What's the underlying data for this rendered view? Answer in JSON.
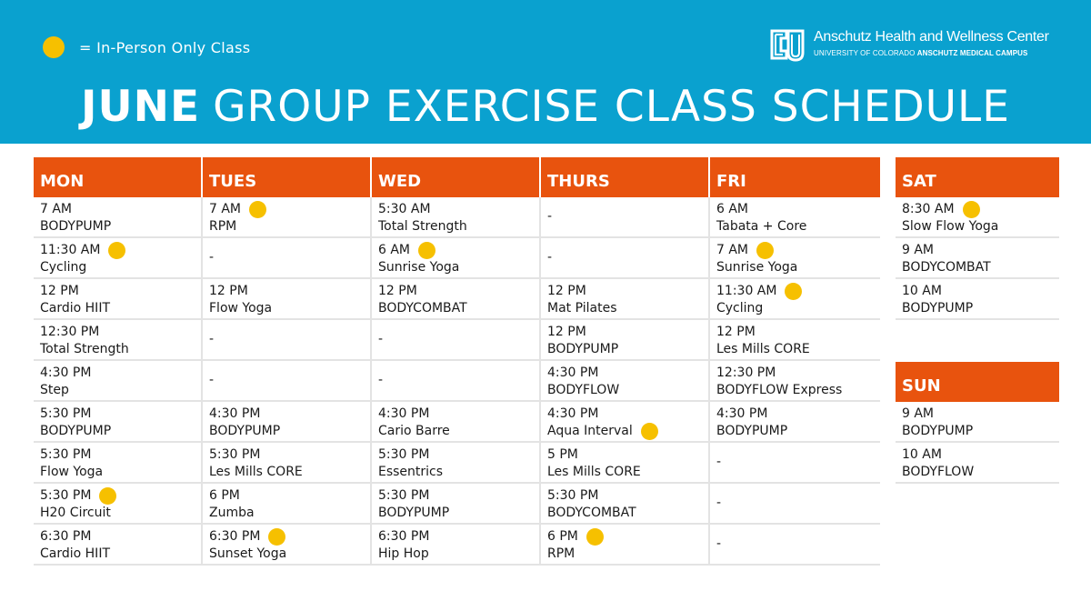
{
  "legend": {
    "text": "= In-Person Only Class",
    "dot_color": "#f6c000"
  },
  "logo": {
    "title": "Anschutz Health and Wellness Center",
    "subtitle_prefix": "UNIVERSITY OF COLORADO",
    "subtitle_bold": "ANSCHUTZ MEDICAL CAMPUS",
    "mark_icon": "cu-logo-icon"
  },
  "title": {
    "month": "JUNE",
    "rest": "GROUP EXERCISE CLASS SCHEDULE"
  },
  "colors": {
    "banner": "#0aa1cf",
    "header": "#e8530e",
    "dot": "#f6c000"
  },
  "weekdays": {
    "headers": [
      "MON",
      "TUES",
      "WED",
      "THURS",
      "FRI"
    ],
    "rows": [
      [
        {
          "time": "7 AM",
          "name": "BODYPUMP",
          "in_person": false
        },
        {
          "time": "7 AM",
          "name": "RPM",
          "in_person": true
        },
        {
          "time": "5:30 AM",
          "name": "Total Strength",
          "in_person": false
        },
        {
          "empty": "-"
        },
        {
          "time": "6 AM",
          "name": "Tabata + Core",
          "in_person": false
        }
      ],
      [
        {
          "time": "11:30 AM",
          "name": "Cycling",
          "in_person": true
        },
        {
          "empty": "-"
        },
        {
          "time": "6 AM",
          "name": "Sunrise Yoga",
          "in_person": true
        },
        {
          "empty": "-"
        },
        {
          "time": "7 AM",
          "name": "Sunrise Yoga",
          "in_person": true
        }
      ],
      [
        {
          "time": "12 PM",
          "name": "Cardio HIIT",
          "in_person": false
        },
        {
          "time": "12 PM",
          "name": "Flow Yoga",
          "in_person": false
        },
        {
          "time": "12 PM",
          "name": "BODYCOMBAT",
          "in_person": false
        },
        {
          "time": "12 PM",
          "name": "Mat Pilates",
          "in_person": false
        },
        {
          "time": "11:30 AM",
          "name": "Cycling",
          "in_person": true
        }
      ],
      [
        {
          "time": "12:30 PM",
          "name": "Total Strength",
          "in_person": false
        },
        {
          "empty": "-"
        },
        {
          "empty": "-"
        },
        {
          "time": "12 PM",
          "name": "BODYPUMP",
          "in_person": false
        },
        {
          "time": "12 PM",
          "name": "Les Mills CORE",
          "in_person": false
        }
      ],
      [
        {
          "time": "4:30 PM",
          "name": "Step",
          "in_person": false
        },
        {
          "empty": "-"
        },
        {
          "empty": "-"
        },
        {
          "time": "4:30 PM",
          "name": "BODYFLOW",
          "in_person": false
        },
        {
          "time": "12:30 PM",
          "name": "BODYFLOW Express",
          "in_person": false
        }
      ],
      [
        {
          "time": "5:30 PM",
          "name": "BODYPUMP",
          "in_person": false
        },
        {
          "time": "4:30 PM",
          "name": "BODYPUMP",
          "in_person": false
        },
        {
          "time": "4:30 PM",
          "name": "Cario Barre",
          "in_person": false
        },
        {
          "time": "4:30 PM",
          "name": "Aqua Interval",
          "in_person": true,
          "dot_on_name": true
        },
        {
          "time": "4:30 PM",
          "name": "BODYPUMP",
          "in_person": false
        }
      ],
      [
        {
          "time": "5:30 PM",
          "name": "Flow Yoga",
          "in_person": false
        },
        {
          "time": "5:30 PM",
          "name": "Les Mills CORE",
          "in_person": false
        },
        {
          "time": "5:30 PM",
          "name": "Essentrics",
          "in_person": false
        },
        {
          "time": "5 PM",
          "name": "Les Mills CORE",
          "in_person": false
        },
        {
          "empty": "-"
        }
      ],
      [
        {
          "time": "5:30 PM",
          "name": "H20 Circuit",
          "in_person": true
        },
        {
          "time": "6 PM",
          "name": "Zumba",
          "in_person": false
        },
        {
          "time": "5:30 PM",
          "name": "BODYPUMP",
          "in_person": false
        },
        {
          "time": "5:30 PM",
          "name": "BODYCOMBAT",
          "in_person": false
        },
        {
          "empty": "-"
        }
      ],
      [
        {
          "time": "6:30 PM",
          "name": "Cardio HIIT",
          "in_person": false
        },
        {
          "time": "6:30 PM",
          "name": "Sunset Yoga",
          "in_person": true
        },
        {
          "time": "6:30 PM",
          "name": "Hip Hop",
          "in_person": false
        },
        {
          "time": "6 PM",
          "name": "RPM",
          "in_person": true
        },
        {
          "empty": "-"
        }
      ]
    ]
  },
  "saturday": {
    "header": "SAT",
    "classes": [
      {
        "time": "8:30 AM",
        "name": "Slow Flow Yoga",
        "in_person": true
      },
      {
        "time": "9 AM",
        "name": "BODYCOMBAT",
        "in_person": false
      },
      {
        "time": "10 AM",
        "name": "BODYPUMP",
        "in_person": false
      }
    ]
  },
  "sunday": {
    "header": "SUN",
    "classes": [
      {
        "time": "9 AM",
        "name": "BODYPUMP",
        "in_person": false
      },
      {
        "time": "10 AM",
        "name": "BODYFLOW",
        "in_person": false
      }
    ]
  }
}
